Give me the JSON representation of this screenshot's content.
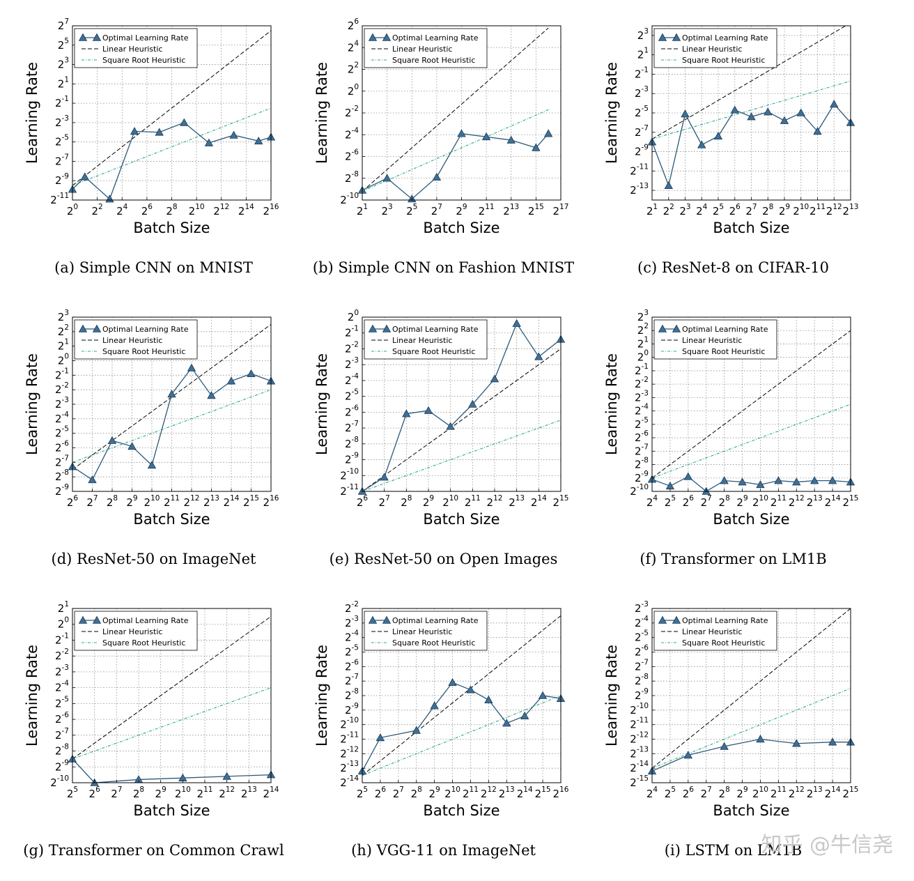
{
  "watermark": "知乎 @牛信尧",
  "legend": {
    "optimal": "Optimal Learning Rate",
    "linear": "Linear Heuristic",
    "sqrt": "Square Root Heuristic"
  },
  "colors": {
    "optimal_line": "#2b5878",
    "optimal_marker": "#3f6f96",
    "linear": "#000000",
    "sqrt": "#2aa889",
    "grid": "#8c8c8c"
  },
  "chart_data": [
    {
      "type": "line",
      "caption": "(a) Simple CNN on MNIST",
      "xlabel": "Batch Size",
      "ylabel": "Learning Rate",
      "scale": "log2",
      "xlim": [
        0,
        16
      ],
      "ylim": [
        -11,
        7
      ],
      "xticks": [
        0,
        2,
        4,
        6,
        8,
        10,
        12,
        14,
        16
      ],
      "yticks": [
        -11,
        -9,
        -7,
        -5,
        -3,
        -1,
        1,
        3,
        5,
        7
      ],
      "legend_position": "top-left",
      "grid": true,
      "series": [
        {
          "name": "Optimal Learning Rate",
          "x": [
            0,
            1,
            3,
            5,
            7,
            9,
            11,
            13,
            15,
            16
          ],
          "y": [
            -9.9,
            -8.6,
            -10.9,
            -3.9,
            -4.0,
            -3.0,
            -5.1,
            -4.3,
            -4.9,
            -4.5
          ]
        },
        {
          "name": "Linear Heuristic",
          "x": [
            0,
            16
          ],
          "y": [
            -9.5,
            6.5
          ]
        },
        {
          "name": "Square Root Heuristic",
          "x": [
            0,
            16
          ],
          "y": [
            -9.5,
            -1.5
          ]
        }
      ]
    },
    {
      "type": "line",
      "caption": "(b) Simple CNN on Fashion MNIST",
      "xlabel": "Batch Size",
      "ylabel": "Learning Rate",
      "scale": "log2",
      "xlim": [
        1,
        17
      ],
      "ylim": [
        -10,
        6
      ],
      "xticks": [
        1,
        3,
        5,
        7,
        9,
        11,
        13,
        15,
        17
      ],
      "yticks": [
        -10,
        -8,
        -6,
        -4,
        -2,
        0,
        2,
        4,
        6
      ],
      "legend_position": "top-left",
      "grid": true,
      "series": [
        {
          "name": "Optimal Learning Rate",
          "x": [
            1,
            3,
            5,
            7,
            9,
            11,
            13,
            15,
            16
          ],
          "y": [
            -9.1,
            -8.0,
            -9.9,
            -7.9,
            -3.9,
            -4.2,
            -4.5,
            -5.2,
            -3.9
          ]
        },
        {
          "name": "Linear Heuristic",
          "x": [
            1,
            16
          ],
          "y": [
            -9.2,
            5.8
          ]
        },
        {
          "name": "Square Root Heuristic",
          "x": [
            1,
            16
          ],
          "y": [
            -9.2,
            -1.7
          ]
        }
      ]
    },
    {
      "type": "line",
      "caption": "(c) ResNet-8 on CIFAR-10",
      "xlabel": "Batch Size",
      "ylabel": "Learning Rate",
      "scale": "log2",
      "xlim": [
        1,
        13
      ],
      "ylim": [
        -14,
        4
      ],
      "xticks": [
        1,
        2,
        3,
        4,
        5,
        6,
        7,
        8,
        9,
        10,
        11,
        12,
        13
      ],
      "yticks": [
        -13,
        -11,
        -9,
        -7,
        -5,
        -3,
        -1,
        1,
        3
      ],
      "legend_position": "top-left",
      "grid": true,
      "series": [
        {
          "name": "Optimal Learning Rate",
          "x": [
            1,
            2,
            3,
            4,
            5,
            6,
            7,
            8,
            9,
            10,
            11,
            12,
            13
          ],
          "y": [
            -8.0,
            -12.5,
            -5.1,
            -8.3,
            -7.4,
            -4.7,
            -5.4,
            -4.9,
            -5.8,
            -5.0,
            -6.9,
            -4.1,
            -6.0
          ]
        },
        {
          "name": "Linear Heuristic",
          "x": [
            1,
            13
          ],
          "y": [
            -7.7,
            4.3
          ]
        },
        {
          "name": "Square Root Heuristic",
          "x": [
            1,
            13
          ],
          "y": [
            -7.7,
            -1.7
          ]
        }
      ]
    },
    {
      "type": "line",
      "caption": "(d) ResNet-50 on ImageNet",
      "xlabel": "Batch Size",
      "ylabel": "Learning Rate",
      "scale": "log2",
      "xlim": [
        6,
        16
      ],
      "ylim": [
        -9,
        3
      ],
      "xticks": [
        6,
        7,
        8,
        9,
        10,
        11,
        12,
        13,
        14,
        15,
        16
      ],
      "yticks": [
        -9,
        -8,
        -7,
        -6,
        -5,
        -4,
        -3,
        -2,
        -1,
        0,
        1,
        2,
        3
      ],
      "legend_position": "top-left",
      "grid": true,
      "series": [
        {
          "name": "Optimal Learning Rate",
          "x": [
            6,
            7,
            8,
            9,
            10,
            11,
            12,
            13,
            14,
            15,
            16
          ],
          "y": [
            -7.3,
            -8.2,
            -5.5,
            -5.9,
            -7.2,
            -2.3,
            -0.5,
            -2.4,
            -1.4,
            -0.9,
            -1.4
          ]
        },
        {
          "name": "Linear Heuristic",
          "x": [
            6,
            16
          ],
          "y": [
            -7.5,
            2.5
          ]
        },
        {
          "name": "Square Root Heuristic",
          "x": [
            6,
            16
          ],
          "y": [
            -7.0,
            -2.0
          ]
        }
      ]
    },
    {
      "type": "line",
      "caption": "(e) ResNet-50 on Open Images",
      "xlabel": "Batch Size",
      "ylabel": "Learning Rate",
      "scale": "log2",
      "xlim": [
        6,
        15
      ],
      "ylim": [
        -11,
        0
      ],
      "xticks": [
        6,
        7,
        8,
        9,
        10,
        11,
        12,
        13,
        14,
        15
      ],
      "yticks": [
        -11,
        -10,
        -9,
        -8,
        -7,
        -6,
        -5,
        -4,
        -3,
        -2,
        -1,
        0
      ],
      "legend_position": "top-left",
      "grid": true,
      "series": [
        {
          "name": "Optimal Learning Rate",
          "x": [
            6,
            7,
            8,
            9,
            10,
            11,
            12,
            13,
            14,
            15
          ],
          "y": [
            -11.0,
            -10.1,
            -6.1,
            -5.9,
            -6.9,
            -5.5,
            -3.9,
            -0.4,
            -2.5,
            -1.4
          ]
        },
        {
          "name": "Linear Heuristic",
          "x": [
            6,
            15
          ],
          "y": [
            -11.0,
            -2.0
          ]
        },
        {
          "name": "Square Root Heuristic",
          "x": [
            6,
            15
          ],
          "y": [
            -11.0,
            -6.5
          ]
        }
      ]
    },
    {
      "type": "line",
      "caption": "(f) Transformer on LM1B",
      "xlabel": "Batch Size",
      "ylabel": "Learning Rate",
      "scale": "log2",
      "xlim": [
        4,
        15
      ],
      "ylim": [
        -10,
        3
      ],
      "xticks": [
        4,
        5,
        6,
        7,
        8,
        9,
        10,
        11,
        12,
        13,
        14,
        15
      ],
      "yticks": [
        -10,
        -9,
        -8,
        -7,
        -6,
        -5,
        -4,
        -3,
        -2,
        -1,
        0,
        1,
        2,
        3
      ],
      "legend_position": "top-left",
      "grid": true,
      "series": [
        {
          "name": "Optimal Learning Rate",
          "x": [
            4,
            5,
            6,
            7,
            8,
            9,
            10,
            11,
            12,
            13,
            14,
            15
          ],
          "y": [
            -9.1,
            -9.6,
            -8.9,
            -10.0,
            -9.2,
            -9.3,
            -9.5,
            -9.2,
            -9.3,
            -9.2,
            -9.2,
            -9.3
          ]
        },
        {
          "name": "Linear Heuristic",
          "x": [
            4,
            15
          ],
          "y": [
            -9.0,
            2.0
          ]
        },
        {
          "name": "Square Root Heuristic",
          "x": [
            4,
            15
          ],
          "y": [
            -9.0,
            -3.5
          ]
        }
      ]
    },
    {
      "type": "line",
      "caption": "(g) Transformer on Common Crawl",
      "xlabel": "Batch Size",
      "ylabel": "Learning Rate",
      "scale": "log2",
      "xlim": [
        5,
        14
      ],
      "ylim": [
        -10,
        1
      ],
      "xticks": [
        5,
        6,
        7,
        8,
        9,
        10,
        11,
        12,
        13,
        14
      ],
      "yticks": [
        -10,
        -9,
        -8,
        -7,
        -6,
        -5,
        -4,
        -3,
        -2,
        -1,
        0,
        1
      ],
      "legend_position": "top-left",
      "grid": true,
      "series": [
        {
          "name": "Optimal Learning Rate",
          "x": [
            5,
            6,
            8,
            10,
            12,
            14
          ],
          "y": [
            -8.5,
            -10.0,
            -9.8,
            -9.7,
            -9.6,
            -9.5
          ]
        },
        {
          "name": "Linear Heuristic",
          "x": [
            5,
            14
          ],
          "y": [
            -8.5,
            0.5
          ]
        },
        {
          "name": "Square Root Heuristic",
          "x": [
            5,
            14
          ],
          "y": [
            -8.5,
            -4.0
          ]
        }
      ]
    },
    {
      "type": "line",
      "caption": "(h) VGG-11 on ImageNet",
      "xlabel": "Batch Size",
      "ylabel": "Learning Rate",
      "scale": "log2",
      "xlim": [
        5,
        16
      ],
      "ylim": [
        -14,
        -2
      ],
      "xticks": [
        5,
        6,
        7,
        8,
        9,
        10,
        11,
        12,
        13,
        14,
        15,
        16
      ],
      "yticks": [
        -14,
        -13,
        -12,
        -11,
        -10,
        -9,
        -8,
        -7,
        -6,
        -5,
        -4,
        -3,
        -2
      ],
      "legend_position": "top-left",
      "grid": true,
      "series": [
        {
          "name": "Optimal Learning Rate",
          "x": [
            5,
            6,
            8,
            9,
            10,
            11,
            12,
            13,
            14,
            15,
            16
          ],
          "y": [
            -13.2,
            -10.9,
            -10.4,
            -8.7,
            -7.1,
            -7.6,
            -8.3,
            -9.9,
            -9.4,
            -8.0,
            -8.2
          ]
        },
        {
          "name": "Linear Heuristic",
          "x": [
            5,
            16
          ],
          "y": [
            -13.5,
            -2.5
          ]
        },
        {
          "name": "Square Root Heuristic",
          "x": [
            5,
            16
          ],
          "y": [
            -13.5,
            -8.0
          ]
        }
      ]
    },
    {
      "type": "line",
      "caption": "(i) LSTM on LM1B",
      "xlabel": "Batch Size",
      "ylabel": "Learning Rate",
      "scale": "log2",
      "xlim": [
        4,
        15
      ],
      "ylim": [
        -15,
        -3
      ],
      "xticks": [
        4,
        5,
        6,
        7,
        8,
        9,
        10,
        11,
        12,
        13,
        14,
        15
      ],
      "yticks": [
        -15,
        -14,
        -13,
        -12,
        -11,
        -10,
        -9,
        -8,
        -7,
        -6,
        -5,
        -4,
        -3
      ],
      "legend_position": "top-left",
      "grid": true,
      "series": [
        {
          "name": "Optimal Learning Rate",
          "x": [
            4,
            6,
            8,
            10,
            12,
            14,
            15
          ],
          "y": [
            -14.2,
            -13.1,
            -12.5,
            -12.0,
            -12.3,
            -12.2,
            -12.2
          ]
        },
        {
          "name": "Linear Heuristic",
          "x": [
            4,
            15
          ],
          "y": [
            -14.0,
            -3.0
          ]
        },
        {
          "name": "Square Root Heuristic",
          "x": [
            4,
            15
          ],
          "y": [
            -14.0,
            -8.5
          ]
        }
      ]
    }
  ]
}
